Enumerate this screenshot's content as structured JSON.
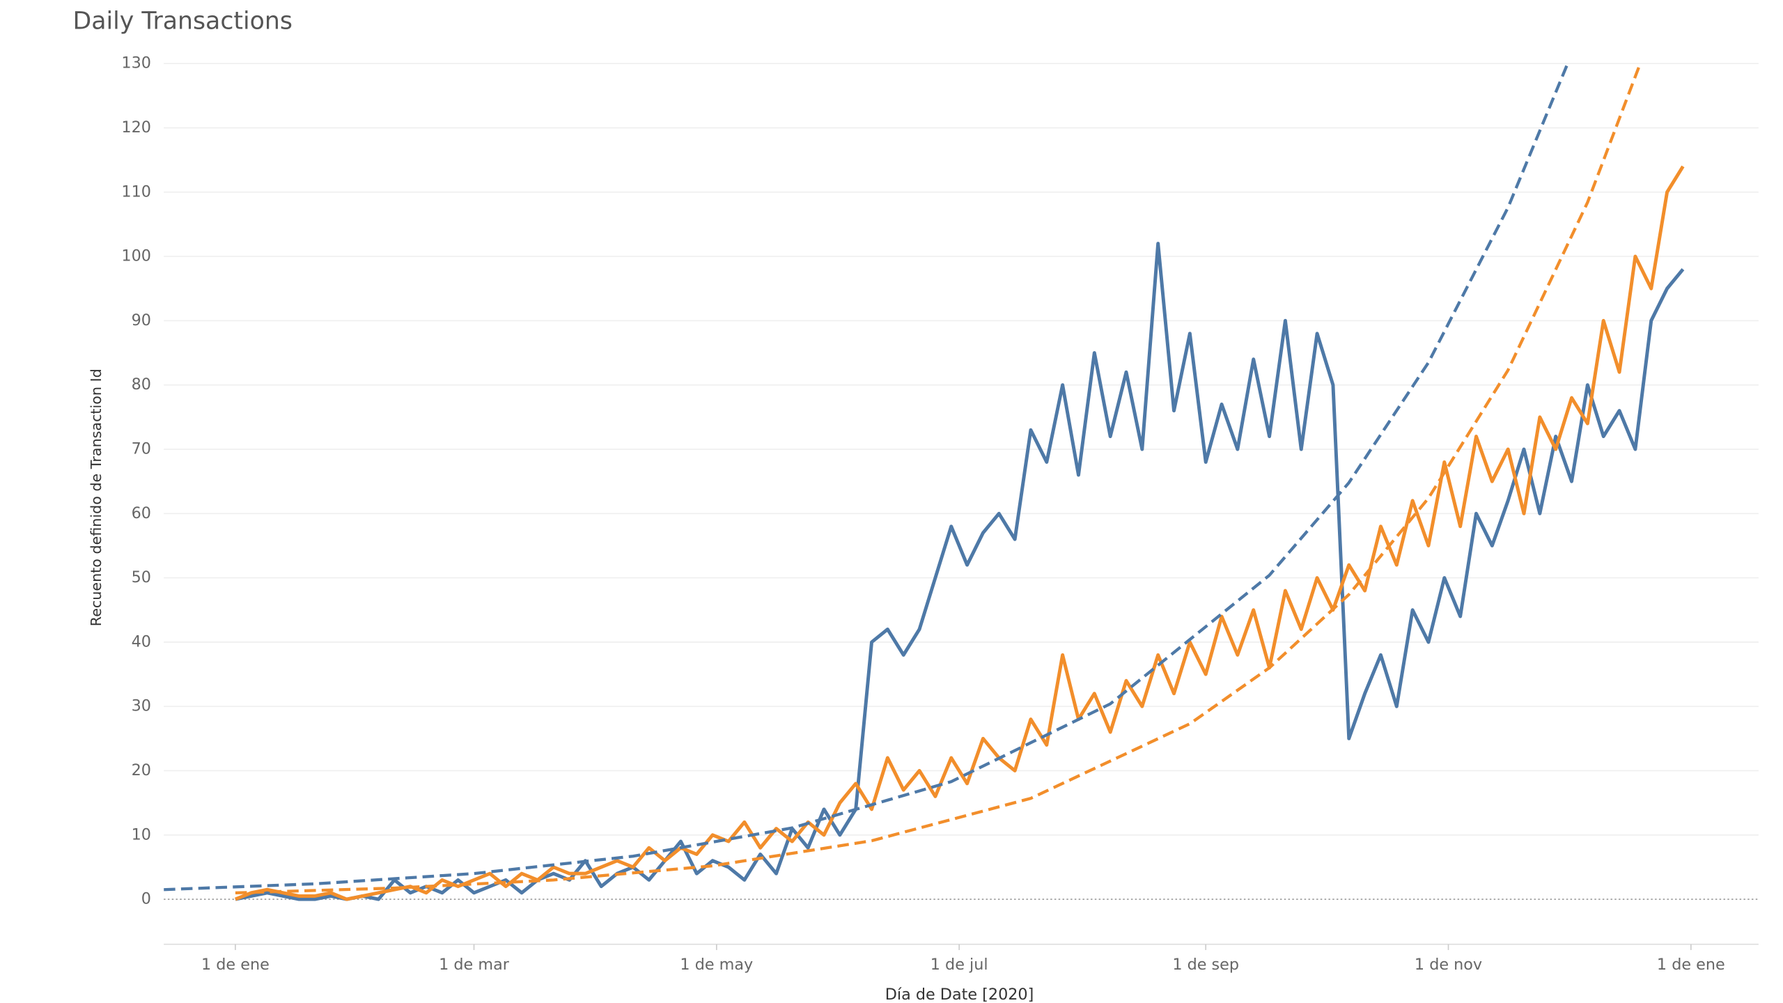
{
  "chart_data": {
    "type": "line",
    "title": "Daily Transactions",
    "x_label": "Día de Date [2020]",
    "y_label": "Recuento definido de Transaction Id",
    "xlim": [
      "2019-12-14",
      "2021-01-18"
    ],
    "xticks": [
      {
        "value": "2020-01-01",
        "label": "1 de ene"
      },
      {
        "value": "2020-03-01",
        "label": "1 de mar"
      },
      {
        "value": "2020-05-01",
        "label": "1 de may"
      },
      {
        "value": "2020-07-01",
        "label": "1 de jul"
      },
      {
        "value": "2020-09-01",
        "label": "1 de sep"
      },
      {
        "value": "2020-11-01",
        "label": "1 de nov"
      },
      {
        "value": "2021-01-01",
        "label": "1 de ene"
      }
    ],
    "ylim": [
      -7,
      132
    ],
    "yticks": [
      0,
      10,
      20,
      30,
      40,
      50,
      60,
      70,
      80,
      90,
      100,
      110,
      120,
      130
    ],
    "grid": true,
    "x": [
      "2020-01-01",
      "2020-01-05",
      "2020-01-09",
      "2020-01-13",
      "2020-01-17",
      "2020-01-21",
      "2020-01-25",
      "2020-01-29",
      "2020-02-02",
      "2020-02-06",
      "2020-02-10",
      "2020-02-14",
      "2020-02-18",
      "2020-02-22",
      "2020-02-26",
      "2020-03-01",
      "2020-03-05",
      "2020-03-09",
      "2020-03-13",
      "2020-03-17",
      "2020-03-21",
      "2020-03-25",
      "2020-03-29",
      "2020-04-02",
      "2020-04-06",
      "2020-04-10",
      "2020-04-14",
      "2020-04-18",
      "2020-04-22",
      "2020-04-26",
      "2020-04-30",
      "2020-05-04",
      "2020-05-08",
      "2020-05-12",
      "2020-05-16",
      "2020-05-20",
      "2020-05-24",
      "2020-05-28",
      "2020-06-01",
      "2020-06-05",
      "2020-06-09",
      "2020-06-13",
      "2020-06-17",
      "2020-06-21",
      "2020-06-25",
      "2020-06-29",
      "2020-07-03",
      "2020-07-07",
      "2020-07-11",
      "2020-07-15",
      "2020-07-19",
      "2020-07-23",
      "2020-07-27",
      "2020-07-31",
      "2020-08-04",
      "2020-08-08",
      "2020-08-12",
      "2020-08-16",
      "2020-08-20",
      "2020-08-24",
      "2020-08-28",
      "2020-09-01",
      "2020-09-05",
      "2020-09-09",
      "2020-09-13",
      "2020-09-17",
      "2020-09-21",
      "2020-09-25",
      "2020-09-29",
      "2020-10-03",
      "2020-10-07",
      "2020-10-11",
      "2020-10-15",
      "2020-10-19",
      "2020-10-23",
      "2020-10-27",
      "2020-10-31",
      "2020-11-04",
      "2020-11-08",
      "2020-11-12",
      "2020-11-16",
      "2020-11-20",
      "2020-11-24",
      "2020-11-28",
      "2020-12-02",
      "2020-12-06",
      "2020-12-10",
      "2020-12-14",
      "2020-12-18",
      "2020-12-22",
      "2020-12-26",
      "2020-12-30"
    ],
    "series": [
      {
        "color": "#4e79a7",
        "values": [
          0,
          0.5,
          1,
          0.5,
          0,
          0,
          0.5,
          0,
          0.5,
          0,
          3,
          1,
          2,
          1,
          3,
          1,
          2,
          3,
          1,
          3,
          4,
          3,
          6,
          2,
          4,
          5,
          3,
          6,
          9,
          4,
          6,
          5,
          3,
          7,
          4,
          11,
          8,
          14,
          10,
          14,
          40,
          42,
          38,
          42,
          50,
          58,
          52,
          57,
          60,
          56,
          73,
          68,
          80,
          66,
          85,
          72,
          82,
          70,
          102,
          76,
          88,
          68,
          77,
          70,
          84,
          72,
          90,
          70,
          88,
          80,
          25,
          32,
          38,
          30,
          45,
          40,
          50,
          44,
          60,
          55,
          62,
          70,
          60,
          72,
          65,
          80,
          72,
          76,
          70,
          90,
          95,
          98
        ]
      },
      {
        "color": "#f28e2b",
        "values": [
          0,
          1,
          1.5,
          1,
          0.5,
          0.5,
          1,
          0,
          0.5,
          1,
          1.5,
          2,
          1,
          3,
          2,
          3,
          4,
          2,
          4,
          3,
          5,
          4,
          4,
          5,
          6,
          5,
          8,
          6,
          8,
          7,
          10,
          9,
          12,
          8,
          11,
          9,
          12,
          10,
          15,
          18,
          14,
          22,
          17,
          20,
          16,
          22,
          18,
          25,
          22,
          20,
          28,
          24,
          38,
          28,
          32,
          26,
          34,
          30,
          38,
          32,
          40,
          35,
          44,
          38,
          45,
          36,
          48,
          42,
          50,
          45,
          52,
          48,
          58,
          52,
          62,
          55,
          68,
          58,
          72,
          65,
          70,
          60,
          75,
          70,
          78,
          74,
          90,
          82,
          100,
          95,
          110,
          114
        ]
      },
      {
        "color": "#4e79a7",
        "dash": true,
        "x": [
          "2019-12-14",
          "2020-01-21",
          "2020-03-01",
          "2020-04-10",
          "2020-05-20",
          "2020-06-29",
          "2020-08-08",
          "2020-09-17",
          "2020-10-07",
          "2020-10-27",
          "2020-11-16",
          "2020-12-01"
        ],
        "values": [
          1.5,
          2.4,
          4.0,
          6.7,
          11.1,
          18.3,
          30.4,
          50.4,
          64.8,
          83.5,
          107.6,
          130
        ]
      },
      {
        "color": "#f28e2b",
        "dash": true,
        "x": [
          "2020-01-01",
          "2020-02-10",
          "2020-03-21",
          "2020-04-30",
          "2020-06-09",
          "2020-07-19",
          "2020-08-28",
          "2020-09-17",
          "2020-10-07",
          "2020-10-27",
          "2020-11-16",
          "2020-12-06",
          "2020-12-19"
        ],
        "values": [
          1.0,
          1.74,
          3.0,
          5.2,
          9.1,
          15.7,
          27.3,
          36.0,
          47.4,
          62.4,
          82.3,
          108.4,
          129.6
        ]
      }
    ]
  }
}
